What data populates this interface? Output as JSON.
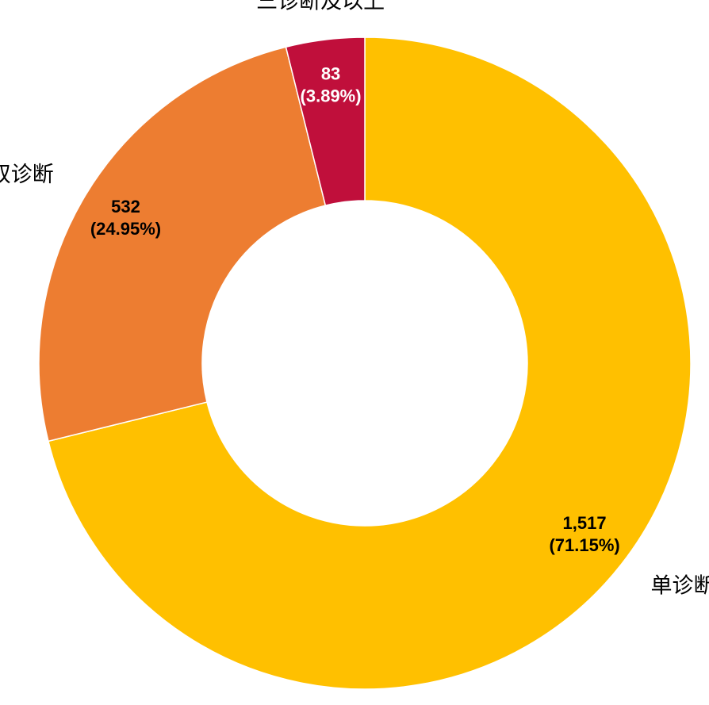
{
  "chart_data": {
    "type": "donut",
    "categories": [
      "单诊断",
      "双诊断",
      "三诊断及以上"
    ],
    "values": [
      1517,
      532,
      83
    ],
    "value_labels": [
      "1,517",
      "532",
      "83"
    ],
    "percent_labels": [
      "(71.15%)",
      "(24.95%)",
      "(3.89%)"
    ],
    "colors": [
      "#FFC000",
      "#ED7D31",
      "#C00F3B"
    ],
    "label_colors": [
      "#000000",
      "#000000",
      "#ffffff"
    ]
  }
}
